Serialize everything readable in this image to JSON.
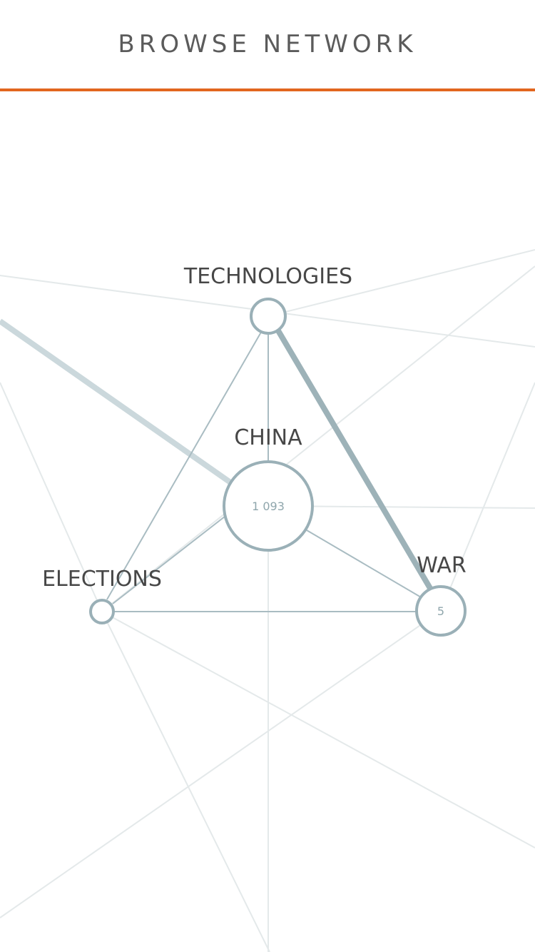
{
  "header": {
    "title": "BROWSE NETWORK"
  },
  "colors": {
    "accent": "#e2661f",
    "node_stroke": "#9ab0b7",
    "edge_strong": "#9db2b8",
    "edge_medium": "#a9bcc2",
    "edge_faint": "#e4e9ea",
    "edge_highlight": "#cbd8dc",
    "label_text": "#474747",
    "count_text": "#8fa6ac"
  },
  "network": {
    "nodes": [
      {
        "id": "technologies",
        "label": "TECHNOLOGIES",
        "count": ""
      },
      {
        "id": "china",
        "label": "CHINA",
        "count": "1 093"
      },
      {
        "id": "elections",
        "label": "ELECTIONS",
        "count": ""
      },
      {
        "id": "war",
        "label": "WAR",
        "count": "5"
      }
    ]
  }
}
